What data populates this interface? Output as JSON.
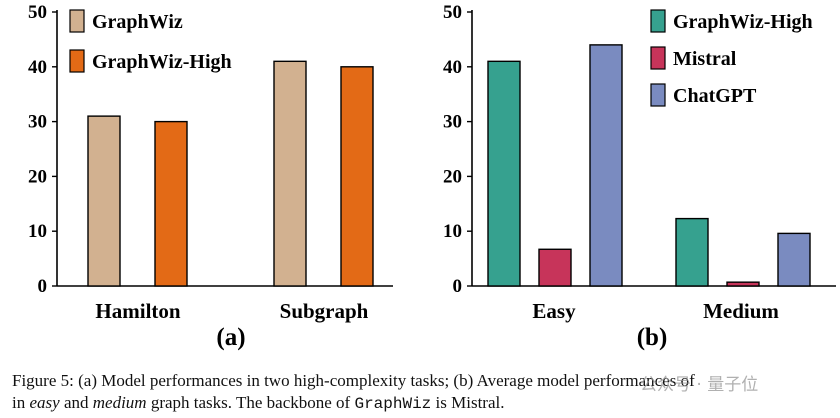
{
  "chart_data": [
    {
      "type": "bar",
      "panel_label": "(a)",
      "categories": [
        "Hamilton",
        "Subgraph"
      ],
      "series": [
        {
          "name": "GraphWiz",
          "color": "#d2b190",
          "values": [
            31,
            41
          ]
        },
        {
          "name": "GraphWiz-High",
          "color": "#e36a16",
          "values": [
            30,
            40
          ]
        }
      ],
      "ylim": [
        0,
        50
      ],
      "yticks": [
        0,
        10,
        20,
        30,
        40,
        50
      ],
      "legend": "top-left"
    },
    {
      "type": "bar",
      "panel_label": "(b)",
      "categories": [
        "Easy",
        "Medium"
      ],
      "series": [
        {
          "name": "GraphWiz-High",
          "color": "#36a18f",
          "values": [
            41,
            12.3
          ]
        },
        {
          "name": "Mistral",
          "color": "#c7345a",
          "values": [
            6.7,
            0.7
          ]
        },
        {
          "name": "ChatGPT",
          "color": "#7a8bc0",
          "values": [
            44,
            9.6
          ]
        }
      ],
      "ylim": [
        0,
        50
      ],
      "yticks": [
        0,
        10,
        20,
        30,
        40,
        50
      ],
      "legend": "top-right"
    }
  ],
  "caption": {
    "line1": "Figure 5: (a) Model performances in two high-complexity tasks; (b) Average model performances of",
    "line2_pre": "in ",
    "line2_easy": "easy",
    "line2_mid": " and ",
    "line2_medium": "medium",
    "line2_post": " graph tasks. The backbone of ",
    "line2_code": "GraphWiz",
    "line2_end": " is Mistral."
  },
  "watermark": "公众号 · 量子位"
}
